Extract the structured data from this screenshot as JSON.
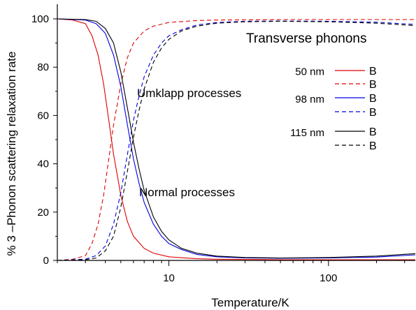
{
  "chart_data": {
    "type": "line",
    "xlabel": "Temperature/K",
    "ylabel": "% 3 –Phonon scattering  relaxation rate",
    "xscale": "log",
    "xlim": [
      2,
      350
    ],
    "ylim": [
      0,
      100
    ],
    "x_ticks": [
      10,
      100
    ],
    "y_ticks": [
      0,
      20,
      40,
      60,
      80,
      100
    ],
    "x_tick_labels": [
      "10",
      "100"
    ],
    "y_tick_labels": [
      "0",
      "20",
      "40",
      "60",
      "80",
      "100"
    ],
    "grid": false,
    "legend_placement": "right",
    "annotations": {
      "panel": "Transverse phonons",
      "umklapp": "Umklapp processes",
      "normal": "Normal processes"
    },
    "legend_groups": [
      {
        "label": "50 nm",
        "color": "#e00000",
        "entries": [
          "B",
          "B"
        ]
      },
      {
        "label": "98 nm",
        "color": "#0000e0",
        "entries": [
          "B",
          "B"
        ]
      },
      {
        "label": "115 nm",
        "color": "#000000",
        "entries": [
          "B",
          "B"
        ]
      }
    ],
    "series": [
      {
        "group": "50 nm",
        "process": "umklapp",
        "dash": "solid",
        "color": "#e00000",
        "x": [
          2.0,
          2.5,
          3.0,
          3.3,
          3.6,
          3.9,
          4.2,
          4.5,
          5.0,
          5.5,
          6.0,
          7.0,
          8.0,
          10,
          15,
          20,
          50,
          100,
          200,
          350
        ],
        "y": [
          100,
          99.5,
          98,
          93,
          85,
          73,
          58,
          44,
          27,
          16,
          10,
          5,
          3,
          1.5,
          0.7,
          0.5,
          0.3,
          0.3,
          0.3,
          0.3
        ]
      },
      {
        "group": "50 nm",
        "process": "normal",
        "dash": "dashed",
        "color": "#e00000",
        "x": [
          2.0,
          2.5,
          3.0,
          3.3,
          3.6,
          3.9,
          4.2,
          4.5,
          5.0,
          5.5,
          6.0,
          7.0,
          8.0,
          10,
          15,
          20,
          50,
          100,
          200,
          350
        ],
        "y": [
          0,
          0.5,
          2,
          7,
          15,
          27,
          42,
          56,
          73,
          84,
          90,
          95,
          97,
          98.5,
          99.3,
          99.5,
          99.7,
          99.7,
          99.7,
          99.7
        ]
      },
      {
        "group": "98 nm",
        "process": "umklapp",
        "dash": "solid",
        "color": "#0000e0",
        "x": [
          2.0,
          3.0,
          3.5,
          4.0,
          4.5,
          5.0,
          5.5,
          6.0,
          6.5,
          7.0,
          8.0,
          9.0,
          10,
          12,
          15,
          20,
          30,
          50,
          100,
          200,
          350
        ],
        "y": [
          100,
          99.5,
          98,
          94,
          85,
          72,
          56,
          42,
          32,
          24,
          15,
          10,
          7,
          4.5,
          2.5,
          1.5,
          1.0,
          0.9,
          1.0,
          1.4,
          2.3
        ]
      },
      {
        "group": "98 nm",
        "process": "normal",
        "dash": "dashed",
        "color": "#0000e0",
        "x": [
          2.0,
          3.0,
          3.5,
          4.0,
          4.5,
          5.0,
          5.5,
          6.0,
          6.5,
          7.0,
          8.0,
          9.0,
          10,
          12,
          15,
          20,
          30,
          50,
          100,
          200,
          350
        ],
        "y": [
          0,
          0.5,
          2,
          6,
          15,
          28,
          44,
          58,
          68,
          76,
          85,
          90,
          93,
          95.5,
          97.5,
          98.5,
          99,
          99.1,
          99,
          98.6,
          97.7
        ]
      },
      {
        "group": "115 nm",
        "process": "umklapp",
        "dash": "solid",
        "color": "#000000",
        "x": [
          2.0,
          3.0,
          3.5,
          4.0,
          4.5,
          5.0,
          5.5,
          6.0,
          6.5,
          7.0,
          8.0,
          9.0,
          10,
          12,
          15,
          20,
          30,
          50,
          100,
          200,
          350
        ],
        "y": [
          100,
          99.7,
          99,
          96,
          90,
          78,
          63,
          49,
          38,
          29,
          18,
          12,
          8.5,
          5,
          3,
          1.8,
          1.2,
          1.0,
          1.2,
          1.8,
          2.8
        ]
      },
      {
        "group": "115 nm",
        "process": "normal",
        "dash": "dashed",
        "color": "#000000",
        "x": [
          2.0,
          3.0,
          3.5,
          4.0,
          4.5,
          5.0,
          5.5,
          6.0,
          6.5,
          7.0,
          8.0,
          9.0,
          10,
          12,
          15,
          20,
          30,
          50,
          100,
          200,
          350
        ],
        "y": [
          0,
          0.3,
          1,
          4,
          10,
          22,
          37,
          51,
          62,
          71,
          82,
          88,
          91.5,
          95,
          97,
          98.2,
          98.8,
          99,
          98.8,
          98.2,
          97.2
        ]
      }
    ]
  }
}
